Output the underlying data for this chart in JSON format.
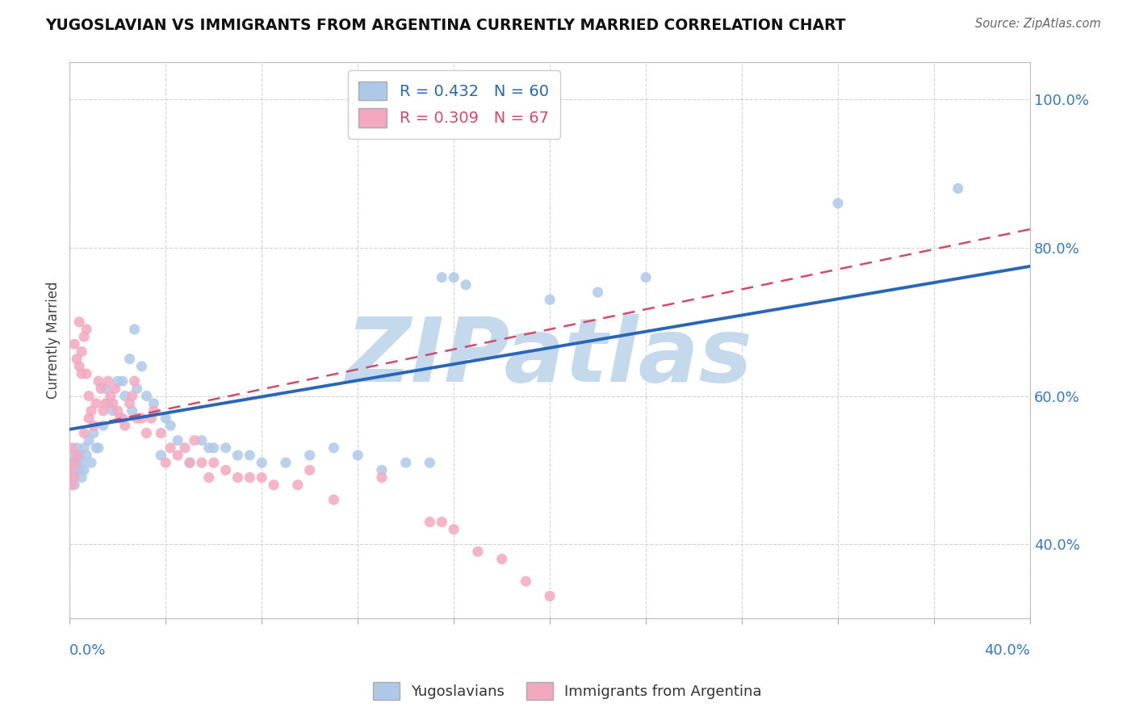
{
  "title": "YUGOSLAVIAN VS IMMIGRANTS FROM ARGENTINA CURRENTLY MARRIED CORRELATION CHART",
  "source": "Source: ZipAtlas.com",
  "ylabel": "Currently Married",
  "xlim": [
    0.0,
    0.4
  ],
  "ylim": [
    0.3,
    1.05
  ],
  "ytick_vals": [
    0.4,
    0.6,
    0.8,
    1.0
  ],
  "series": [
    {
      "name": "Yugoslavians",
      "R": 0.432,
      "N": 60,
      "color": "#aec9e8",
      "line_color": "#2966b8",
      "line_style": "solid",
      "points": [
        [
          0.001,
          0.51
        ],
        [
          0.001,
          0.49
        ],
        [
          0.001,
          0.52
        ],
        [
          0.002,
          0.5
        ],
        [
          0.002,
          0.48
        ],
        [
          0.003,
          0.51
        ],
        [
          0.003,
          0.53
        ],
        [
          0.004,
          0.5
        ],
        [
          0.004,
          0.52
        ],
        [
          0.005,
          0.51
        ],
        [
          0.005,
          0.49
        ],
        [
          0.006,
          0.53
        ],
        [
          0.006,
          0.5
        ],
        [
          0.007,
          0.52
        ],
        [
          0.008,
          0.54
        ],
        [
          0.009,
          0.51
        ],
        [
          0.01,
          0.55
        ],
        [
          0.011,
          0.53
        ],
        [
          0.012,
          0.53
        ],
        [
          0.014,
          0.56
        ],
        [
          0.015,
          0.61
        ],
        [
          0.016,
          0.59
        ],
        [
          0.018,
          0.58
        ],
        [
          0.02,
          0.62
        ],
        [
          0.022,
          0.62
        ],
        [
          0.023,
          0.6
        ],
        [
          0.025,
          0.65
        ],
        [
          0.026,
          0.58
        ],
        [
          0.027,
          0.69
        ],
        [
          0.028,
          0.61
        ],
        [
          0.03,
          0.64
        ],
        [
          0.032,
          0.6
        ],
        [
          0.035,
          0.59
        ],
        [
          0.038,
          0.52
        ],
        [
          0.04,
          0.57
        ],
        [
          0.042,
          0.56
        ],
        [
          0.045,
          0.54
        ],
        [
          0.05,
          0.51
        ],
        [
          0.055,
          0.54
        ],
        [
          0.058,
          0.53
        ],
        [
          0.06,
          0.53
        ],
        [
          0.065,
          0.53
        ],
        [
          0.07,
          0.52
        ],
        [
          0.075,
          0.52
        ],
        [
          0.08,
          0.51
        ],
        [
          0.09,
          0.51
        ],
        [
          0.1,
          0.52
        ],
        [
          0.11,
          0.53
        ],
        [
          0.12,
          0.52
        ],
        [
          0.13,
          0.5
        ],
        [
          0.14,
          0.51
        ],
        [
          0.15,
          0.51
        ],
        [
          0.155,
          0.76
        ],
        [
          0.16,
          0.76
        ],
        [
          0.165,
          0.75
        ],
        [
          0.2,
          0.73
        ],
        [
          0.22,
          0.74
        ],
        [
          0.24,
          0.76
        ],
        [
          0.32,
          0.86
        ],
        [
          0.37,
          0.88
        ]
      ]
    },
    {
      "name": "Immigrants from Argentina",
      "R": 0.309,
      "N": 67,
      "color": "#f4a8c0",
      "line_color": "#d44a6a",
      "line_style": "dashed",
      "points": [
        [
          0.001,
          0.53
        ],
        [
          0.001,
          0.5
        ],
        [
          0.001,
          0.48
        ],
        [
          0.002,
          0.51
        ],
        [
          0.002,
          0.49
        ],
        [
          0.002,
          0.67
        ],
        [
          0.003,
          0.52
        ],
        [
          0.003,
          0.65
        ],
        [
          0.004,
          0.64
        ],
        [
          0.004,
          0.7
        ],
        [
          0.005,
          0.63
        ],
        [
          0.005,
          0.66
        ],
        [
          0.006,
          0.55
        ],
        [
          0.006,
          0.68
        ],
        [
          0.007,
          0.63
        ],
        [
          0.007,
          0.69
        ],
        [
          0.008,
          0.57
        ],
        [
          0.008,
          0.6
        ],
        [
          0.009,
          0.58
        ],
        [
          0.01,
          0.56
        ],
        [
          0.011,
          0.59
        ],
        [
          0.012,
          0.62
        ],
        [
          0.013,
          0.61
        ],
        [
          0.014,
          0.58
        ],
        [
          0.015,
          0.59
        ],
        [
          0.016,
          0.62
        ],
        [
          0.017,
          0.6
        ],
        [
          0.018,
          0.59
        ],
        [
          0.019,
          0.61
        ],
        [
          0.02,
          0.58
        ],
        [
          0.021,
          0.57
        ],
        [
          0.022,
          0.57
        ],
        [
          0.023,
          0.56
        ],
        [
          0.025,
          0.59
        ],
        [
          0.026,
          0.6
        ],
        [
          0.027,
          0.62
        ],
        [
          0.028,
          0.57
        ],
        [
          0.03,
          0.57
        ],
        [
          0.032,
          0.55
        ],
        [
          0.034,
          0.57
        ],
        [
          0.035,
          0.58
        ],
        [
          0.038,
          0.55
        ],
        [
          0.04,
          0.51
        ],
        [
          0.042,
          0.53
        ],
        [
          0.045,
          0.52
        ],
        [
          0.048,
          0.53
        ],
        [
          0.05,
          0.51
        ],
        [
          0.052,
          0.54
        ],
        [
          0.055,
          0.51
        ],
        [
          0.058,
          0.49
        ],
        [
          0.06,
          0.51
        ],
        [
          0.065,
          0.5
        ],
        [
          0.07,
          0.49
        ],
        [
          0.075,
          0.49
        ],
        [
          0.08,
          0.49
        ],
        [
          0.085,
          0.48
        ],
        [
          0.095,
          0.48
        ],
        [
          0.1,
          0.5
        ],
        [
          0.11,
          0.46
        ],
        [
          0.13,
          0.49
        ],
        [
          0.15,
          0.43
        ],
        [
          0.155,
          0.43
        ],
        [
          0.16,
          0.42
        ],
        [
          0.17,
          0.39
        ],
        [
          0.18,
          0.38
        ],
        [
          0.19,
          0.35
        ],
        [
          0.2,
          0.33
        ]
      ]
    }
  ],
  "watermark_text": "ZIPatlas",
  "watermark_color": "#c5d9ed",
  "background_color": "#ffffff"
}
